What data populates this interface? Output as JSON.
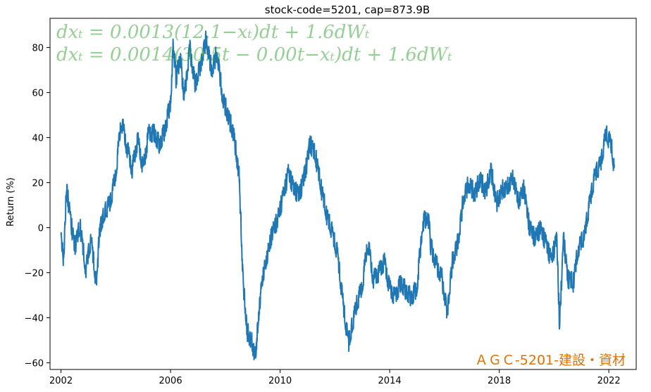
{
  "chart_data": {
    "type": "line",
    "title": "stock-code=5201, cap=873.9B",
    "xlabel": "",
    "ylabel": "Return (%)",
    "xlim": [
      2001.6,
      2023.0
    ],
    "ylim": [
      -63,
      93
    ],
    "x_ticks": [
      2002,
      2006,
      2010,
      2014,
      2018,
      2022
    ],
    "y_ticks": [
      -60,
      -40,
      -20,
      0,
      20,
      40,
      60,
      80
    ],
    "grid": false,
    "line_color": "#1f77b4",
    "annotations": [
      {
        "text": "dxₜ = 0.0013(12.1−xₜ)dt + 1.6dWₜ",
        "color": "#2ca02c"
      },
      {
        "text": "dxₜ = 0.0014(30.5t − 0.00t−xₜ)dt + 1.6dWₜ",
        "color": "#2ca02c"
      }
    ],
    "company_label": "ＡＧＣ-5201-建設・資材",
    "company_label_color": "#e07000",
    "series": [
      {
        "x": [
          2002.0,
          2002.1,
          2002.2,
          2002.35,
          2002.5,
          2002.7,
          2002.9,
          2003.1,
          2003.3,
          2003.4,
          2003.5,
          2003.6,
          2003.8,
          2004.0,
          2004.2,
          2004.4,
          2004.6,
          2004.8,
          2005.0,
          2005.2,
          2005.4,
          2005.6,
          2005.8,
          2006.0,
          2006.1,
          2006.2,
          2006.35,
          2006.5,
          2006.7,
          2006.9,
          2007.1,
          2007.3,
          2007.5,
          2007.7,
          2007.9,
          2008.1,
          2008.3,
          2008.5,
          2008.65,
          2008.8,
          2008.95,
          2009.1,
          2009.2,
          2009.35,
          2009.5,
          2009.7,
          2009.9,
          2010.1,
          2010.3,
          2010.5,
          2010.7,
          2010.9,
          2011.1,
          2011.3,
          2011.5,
          2011.7,
          2011.9,
          2012.1,
          2012.3,
          2012.5,
          2012.6,
          2012.8,
          2013.0,
          2013.2,
          2013.4,
          2013.6,
          2013.8,
          2014.0,
          2014.2,
          2014.4,
          2014.6,
          2014.8,
          2015.0,
          2015.2,
          2015.4,
          2015.5,
          2015.7,
          2015.9,
          2016.1,
          2016.3,
          2016.5,
          2016.7,
          2016.9,
          2017.1,
          2017.3,
          2017.5,
          2017.7,
          2017.9,
          2018.1,
          2018.3,
          2018.5,
          2018.7,
          2018.9,
          2019.1,
          2019.3,
          2019.5,
          2019.7,
          2019.9,
          2020.1,
          2020.2,
          2020.35,
          2020.5,
          2020.7,
          2020.9,
          2021.1,
          2021.3,
          2021.5,
          2021.7,
          2021.9,
          2022.1,
          2022.2
        ],
        "y": [
          -1,
          -12,
          21,
          6,
          -6,
          3,
          -16,
          -3,
          -24,
          0,
          5,
          9,
          13,
          26,
          50,
          38,
          28,
          41,
          28,
          44,
          44,
          39,
          46,
          58,
          84,
          68,
          78,
          60,
          82,
          66,
          75,
          86,
          72,
          80,
          60,
          52,
          44,
          26,
          -22,
          -44,
          -48,
          -55,
          -38,
          -20,
          -12,
          0,
          6,
          16,
          27,
          20,
          17,
          26,
          40,
          34,
          20,
          8,
          0,
          -10,
          -32,
          -50,
          -43,
          -32,
          -24,
          -4,
          -21,
          -18,
          -13,
          -25,
          -29,
          -22,
          -26,
          -29,
          -24,
          4,
          8,
          -6,
          -14,
          -20,
          -35,
          -12,
          -4,
          16,
          22,
          17,
          24,
          18,
          28,
          13,
          19,
          20,
          25,
          14,
          20,
          3,
          -2,
          2,
          -4,
          -12,
          -2,
          -40,
          -2,
          -20,
          -22,
          -6,
          -2,
          13,
          26,
          30,
          44,
          38,
          28
        ]
      }
    ]
  }
}
